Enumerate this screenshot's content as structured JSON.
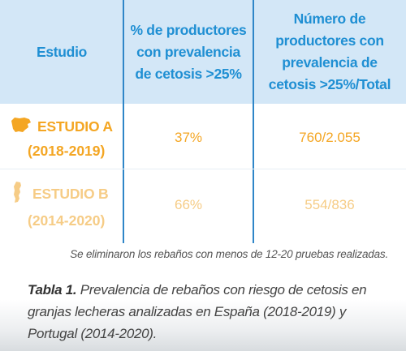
{
  "table": {
    "headers": [
      "Estudio",
      "% de productores con prevalencia de cetosis >25%",
      "Número de productores con prevalencia de cetosis >25%/Total"
    ],
    "header_lines": {
      "col1": [
        "Estudio"
      ],
      "col2": [
        "% de productores",
        "con prevalencia",
        "de cetosis >25%"
      ],
      "col3": [
        "Número de",
        "productores con",
        "prevalencia de",
        "cetosis >25%/Total"
      ]
    },
    "rows": [
      {
        "study": "ESTUDIO A",
        "years": "(2018-2019)",
        "percent": "37%",
        "ratio": "760/2.055",
        "map_icon": "spain-map-icon"
      },
      {
        "study": "ESTUDIO B",
        "years": "(2014-2020)",
        "percent": "66%",
        "ratio": "554/836",
        "map_icon": "portugal-map-icon"
      }
    ]
  },
  "footnote": "Se eliminaron los rebaños con menos de 12-20 pruebas realizadas.",
  "caption": {
    "label": "Tabla 1.",
    "text": "Prevalencia de rebaños con riesgo de cetosis en granjas lecheras analizadas en España (2018-2019) y Portugal (2014-2020)."
  },
  "colors": {
    "header_bg": "#d3e7f7",
    "header_text": "#1f8fd3",
    "divider": "#2f86c8",
    "accent_a": "#f4a623",
    "accent_b": "#f6cc86"
  }
}
